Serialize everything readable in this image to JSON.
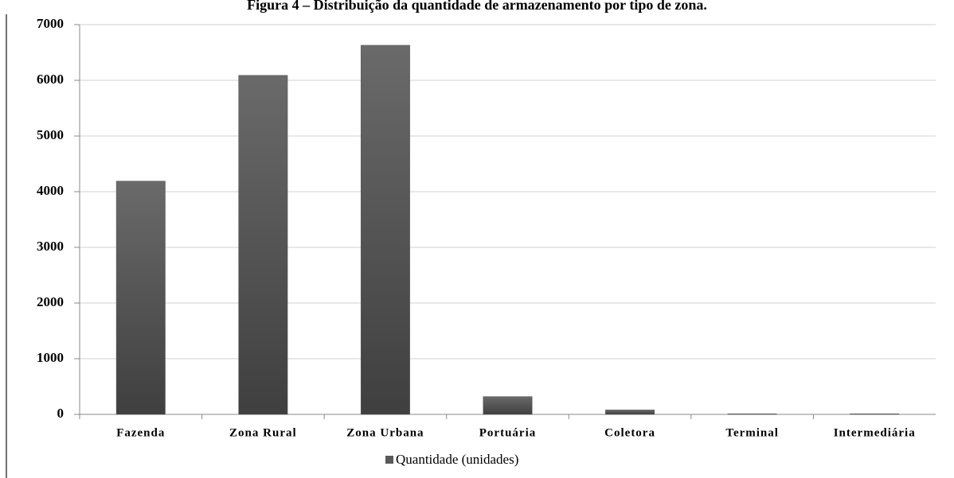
{
  "chart_data": {
    "type": "bar",
    "title": "Figura 4 – Distribuição da quantidade de armazenamento por tipo de zona.",
    "categories": [
      "Fazenda",
      "Zona Rural",
      "Zona Urbana",
      "Portuária",
      "Coletora",
      "Terminal",
      "Intermediária"
    ],
    "series": [
      {
        "name": "Quantidade (unidades)",
        "color": "#595959",
        "values": [
          4190,
          6090,
          6630,
          320,
          80,
          10,
          10
        ]
      }
    ],
    "ylim": [
      0,
      7000
    ],
    "yticks": [
      0,
      1000,
      2000,
      3000,
      4000,
      5000,
      6000,
      7000
    ],
    "grid": true
  }
}
